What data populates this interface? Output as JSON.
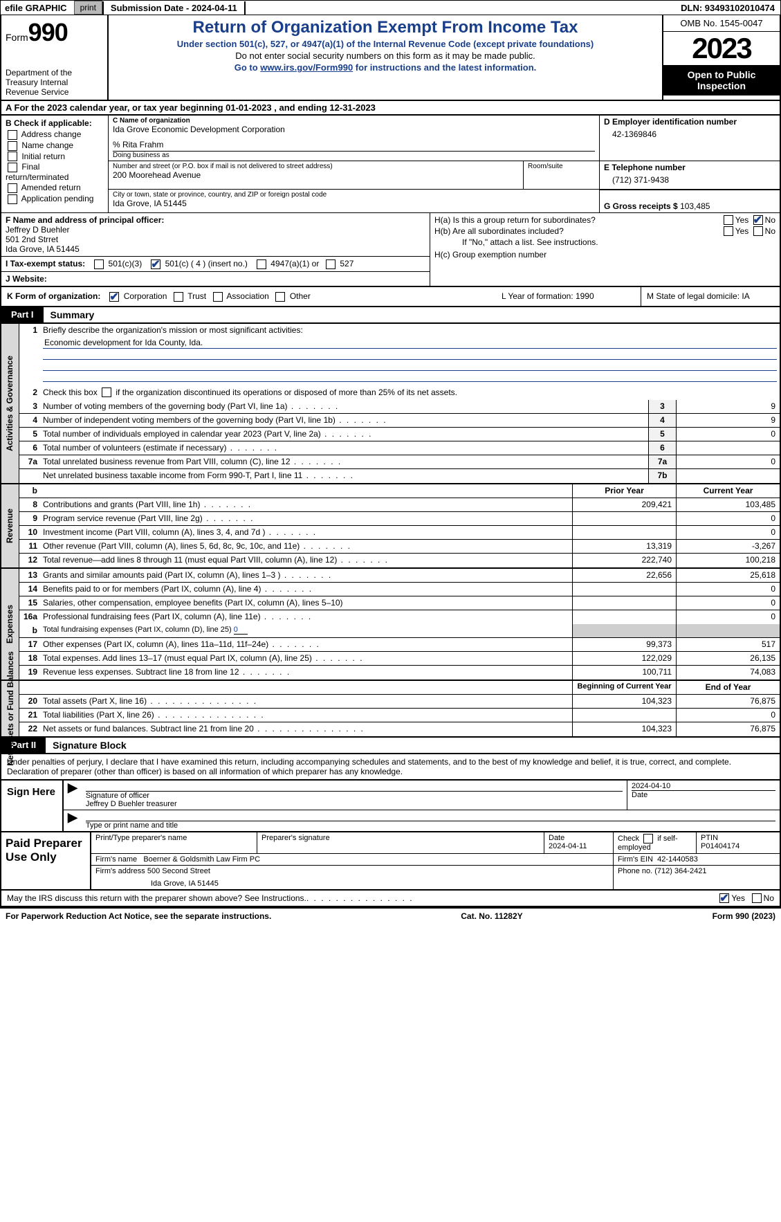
{
  "topbar": {
    "efile_label": "efile GRAPHIC",
    "print_btn": "print",
    "submission": "Submission Date - 2024-04-11",
    "dln": "DLN: 93493102010474"
  },
  "header": {
    "form_word": "Form",
    "form_no": "990",
    "dept": "Department of the Treasury Internal Revenue Service",
    "title": "Return of Organization Exempt From Income Tax",
    "sub1": "Under section 501(c), 527, or 4947(a)(1) of the Internal Revenue Code (except private foundations)",
    "sub2": "Do not enter social security numbers on this form as it may be made public.",
    "sub3_pre": "Go to ",
    "sub3_link": "www.irs.gov/Form990",
    "sub3_post": " for instructions and the latest information.",
    "omb": "OMB No. 1545-0047",
    "year": "2023",
    "open": "Open to Public Inspection"
  },
  "lineA": "A For the 2023 calendar year, or tax year beginning 01-01-2023   , and ending 12-31-2023",
  "boxB": {
    "header": "B Check if applicable:",
    "items": [
      "Address change",
      "Name change",
      "Initial return",
      "Final return/terminated",
      "Amended return",
      "Application pending"
    ]
  },
  "boxC": {
    "name_lbl": "C Name of organization",
    "name": "Ida Grove Economic Development Corporation",
    "care_of": "% Rita Frahm",
    "dba_lbl": "Doing business as",
    "dba": "",
    "street_lbl": "Number and street (or P.O. box if mail is not delivered to street address)",
    "street": "200 Moorehead Avenue",
    "room_lbl": "Room/suite",
    "city_lbl": "City or town, state or province, country, and ZIP or foreign postal code",
    "city": "Ida Grove, IA  51445"
  },
  "boxD": {
    "lbl": "D Employer identification number",
    "val": "42-1369846"
  },
  "boxE": {
    "lbl": "E Telephone number",
    "val": "(712) 371-9438"
  },
  "boxG": {
    "lbl": "G Gross receipts $",
    "val": "103,485"
  },
  "boxF": {
    "lbl": "F  Name and address of principal officer:",
    "line1": "Jeffrey D Buehler",
    "line2": "501 2nd Strret",
    "line3": "Ida Grove, IA  51445"
  },
  "boxH": {
    "a_lbl": "H(a)  Is this a group return for subordinates?",
    "b_lbl": "H(b)  Are all subordinates included?",
    "b_note": "If \"No,\" attach a list. See instructions.",
    "c_lbl": "H(c)  Group exemption number",
    "yes": "Yes",
    "no": "No"
  },
  "lineI": {
    "lbl": "I  Tax-exempt status:",
    "o1": "501(c)(3)",
    "o2": "501(c) ( 4 ) (insert no.)",
    "o3": "4947(a)(1) or",
    "o4": "527"
  },
  "lineJ": {
    "lbl": "J  Website:",
    "val": ""
  },
  "lineK": {
    "lbl": "K Form of organization:",
    "o1": "Corporation",
    "o2": "Trust",
    "o3": "Association",
    "o4": "Other",
    "L": "L Year of formation: 1990",
    "M": "M State of legal domicile: IA"
  },
  "part1": {
    "tab": "Part I",
    "title": "Summary"
  },
  "governance": {
    "label": "Activities & Governance",
    "l1": "Briefly describe the organization's mission or most significant activities:",
    "mission": "Economic development for Ida County, Ida.",
    "l2": "Check this box      if the organization discontinued its operations or disposed of more than 25% of its net assets.",
    "rows": [
      {
        "n": "3",
        "d": "Number of voting members of the governing body (Part VI, line 1a)",
        "b": "3",
        "v": "9"
      },
      {
        "n": "4",
        "d": "Number of independent voting members of the governing body (Part VI, line 1b)",
        "b": "4",
        "v": "9"
      },
      {
        "n": "5",
        "d": "Total number of individuals employed in calendar year 2023 (Part V, line 2a)",
        "b": "5",
        "v": "0"
      },
      {
        "n": "6",
        "d": "Total number of volunteers (estimate if necessary)",
        "b": "6",
        "v": ""
      },
      {
        "n": "7a",
        "d": "Total unrelated business revenue from Part VIII, column (C), line 12",
        "b": "7a",
        "v": "0"
      },
      {
        "n": "",
        "d": "Net unrelated business taxable income from Form 990-T, Part I, line 11",
        "b": "7b",
        "v": ""
      }
    ]
  },
  "revenue": {
    "label": "Revenue",
    "hdr_b": "b",
    "hdr_prior": "Prior Year",
    "hdr_curr": "Current Year",
    "rows": [
      {
        "n": "8",
        "d": "Contributions and grants (Part VIII, line 1h)",
        "p": "209,421",
        "c": "103,485"
      },
      {
        "n": "9",
        "d": "Program service revenue (Part VIII, line 2g)",
        "p": "",
        "c": "0"
      },
      {
        "n": "10",
        "d": "Investment income (Part VIII, column (A), lines 3, 4, and 7d )",
        "p": "",
        "c": "0"
      },
      {
        "n": "11",
        "d": "Other revenue (Part VIII, column (A), lines 5, 6d, 8c, 9c, 10c, and 11e)",
        "p": "13,319",
        "c": "-3,267"
      },
      {
        "n": "12",
        "d": "Total revenue—add lines 8 through 11 (must equal Part VIII, column (A), line 12)",
        "p": "222,740",
        "c": "100,218"
      }
    ]
  },
  "expenses": {
    "label": "Expenses",
    "rows": [
      {
        "n": "13",
        "d": "Grants and similar amounts paid (Part IX, column (A), lines 1–3 )",
        "p": "22,656",
        "c": "25,618",
        "dots": true
      },
      {
        "n": "14",
        "d": "Benefits paid to or for members (Part IX, column (A), line 4)",
        "p": "",
        "c": "0",
        "dots": true
      },
      {
        "n": "15",
        "d": "Salaries, other compensation, employee benefits (Part IX, column (A), lines 5–10)",
        "p": "",
        "c": "0",
        "dots": false
      },
      {
        "n": "16a",
        "d": "Professional fundraising fees (Part IX, column (A), line 11e)",
        "p": "",
        "c": "0",
        "dots": true
      }
    ],
    "row_b": {
      "n": "b",
      "d": "Total fundraising expenses (Part IX, column (D), line 25)",
      "val": "0"
    },
    "rows2": [
      {
        "n": "17",
        "d": "Other expenses (Part IX, column (A), lines 11a–11d, 11f–24e)",
        "p": "99,373",
        "c": "517"
      },
      {
        "n": "18",
        "d": "Total expenses. Add lines 13–17 (must equal Part IX, column (A), line 25)",
        "p": "122,029",
        "c": "26,135"
      },
      {
        "n": "19",
        "d": "Revenue less expenses. Subtract line 18 from line 12",
        "p": "100,711",
        "c": "74,083"
      }
    ]
  },
  "netassets": {
    "label": "Net Assets or Fund Balances",
    "hdr_begin": "Beginning of Current Year",
    "hdr_end": "End of Year",
    "rows": [
      {
        "n": "20",
        "d": "Total assets (Part X, line 16)",
        "p": "104,323",
        "c": "76,875"
      },
      {
        "n": "21",
        "d": "Total liabilities (Part X, line 26)",
        "p": "",
        "c": "0"
      },
      {
        "n": "22",
        "d": "Net assets or fund balances. Subtract line 21 from line 20",
        "p": "104,323",
        "c": "76,875"
      }
    ]
  },
  "part2": {
    "tab": "Part II",
    "title": "Signature Block"
  },
  "sig_intro": "Under penalties of perjury, I declare that I have examined this return, including accompanying schedules and statements, and to the best of my knowledge and belief, it is true, correct, and complete. Declaration of preparer (other than officer) is based on all information of which preparer has any knowledge.",
  "sign": {
    "left": "Sign Here",
    "date": "2024-04-10",
    "sig_lbl": "Signature of officer",
    "name": "Jeffrey D Buehler  treasurer",
    "type_lbl": "Type or print name and title",
    "date_lbl": "Date"
  },
  "prep": {
    "left": "Paid Preparer Use Only",
    "c1": "Print/Type preparer's name",
    "c2": "Preparer's signature",
    "c3_lbl": "Date",
    "c3": "2024-04-11",
    "c4_lbl": "Check",
    "c4_txt": "if self-employed",
    "c5_lbl": "PTIN",
    "c5": "P01404174",
    "firm_lbl": "Firm's name",
    "firm": "Boerner & Goldsmith Law Firm PC",
    "ein_lbl": "Firm's EIN",
    "ein": "42-1440583",
    "addr_lbl": "Firm's address",
    "addr1": "500 Second Street",
    "addr2": "Ida Grove, IA  51445",
    "phone_lbl": "Phone no.",
    "phone": "(712) 364-2421"
  },
  "discuss": {
    "text": "May the IRS discuss this return with the preparer shown above? See Instructions.",
    "yes": "Yes",
    "no": "No"
  },
  "footer": {
    "left": "For Paperwork Reduction Act Notice, see the separate instructions.",
    "mid": "Cat. No. 11282Y",
    "right_form": "Form",
    "right_no": "990",
    "right_yr": "(2023)"
  }
}
